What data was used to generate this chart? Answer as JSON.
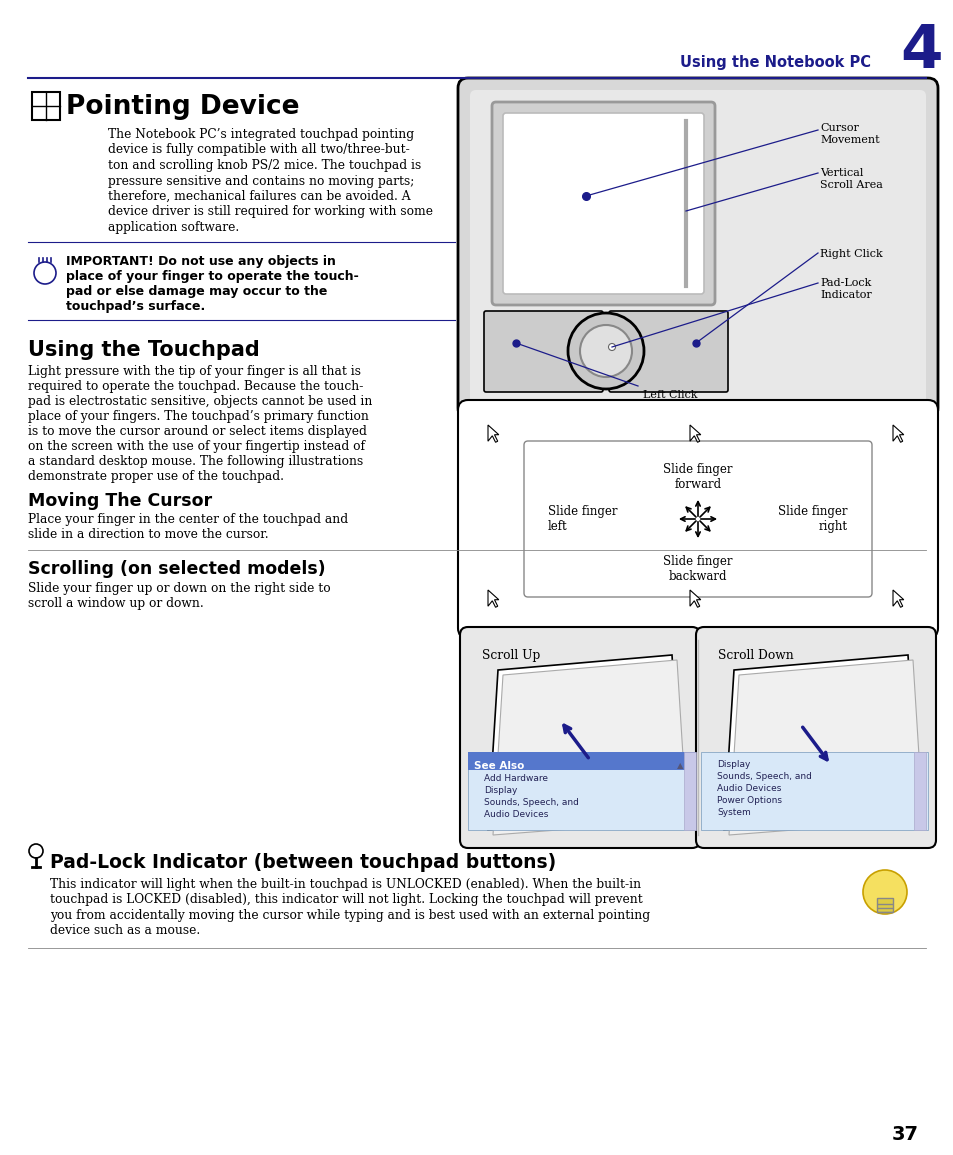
{
  "page_title": "Using the Notebook PC",
  "chapter_num": "4",
  "section1_title": "Pointing Device",
  "section1_body_lines": [
    "The Notebook PC’s integrated touchpad pointing",
    "device is fully compatible with all two/three-but-",
    "ton and scrolling knob PS/2 mice. The touchpad is",
    "pressure sensitive and contains no moving parts;",
    "therefore, mechanical failures can be avoided. A",
    "device driver is still required for working with some",
    "application software."
  ],
  "warning_lines": [
    "IMPORTANT! Do not use any objects in",
    "place of your finger to operate the touch-",
    "pad or else damage may occur to the",
    "touchpad’s surface."
  ],
  "section2_title": "Using the Touchpad",
  "section2_body_lines": [
    "Light pressure with the tip of your finger is all that is",
    "required to operate the touchpad. Because the touch-",
    "pad is electrostatic sensitive, objects cannot be used in",
    "place of your fingers. The touchpad’s primary function",
    "is to move the cursor around or select items displayed",
    "on the screen with the use of your fingertip instead of",
    "a standard desktop mouse. The following illustrations",
    "demonstrate proper use of the touchpad."
  ],
  "section3_title": "Moving The Cursor",
  "section3_body_lines": [
    "Place your finger in the center of the touchpad and",
    "slide in a direction to move the cursor."
  ],
  "section4_title": "Scrolling (on selected models)",
  "section4_body_lines": [
    "Slide your finger up or down on the right side to",
    "scroll a window up or down."
  ],
  "section5_title": "Pad-Lock Indicator (between touchpad buttons)",
  "section5_body_lines": [
    "This indicator will light when the built-in touchpad is UNLOCKED (enabled). When the built-in",
    "touchpad is LOCKED (disabled), this indicator will not light. Locking the touchpad will prevent",
    "you from accidentally moving the cursor while typing and is best used with an external pointing",
    "device such as a mouse."
  ],
  "page_num": "37",
  "blue": "#1c1c8a",
  "black": "#000000",
  "white": "#ffffff",
  "gray_light": "#e8e8e8",
  "gray_mid": "#aaaaaa",
  "bg": "#ffffff"
}
